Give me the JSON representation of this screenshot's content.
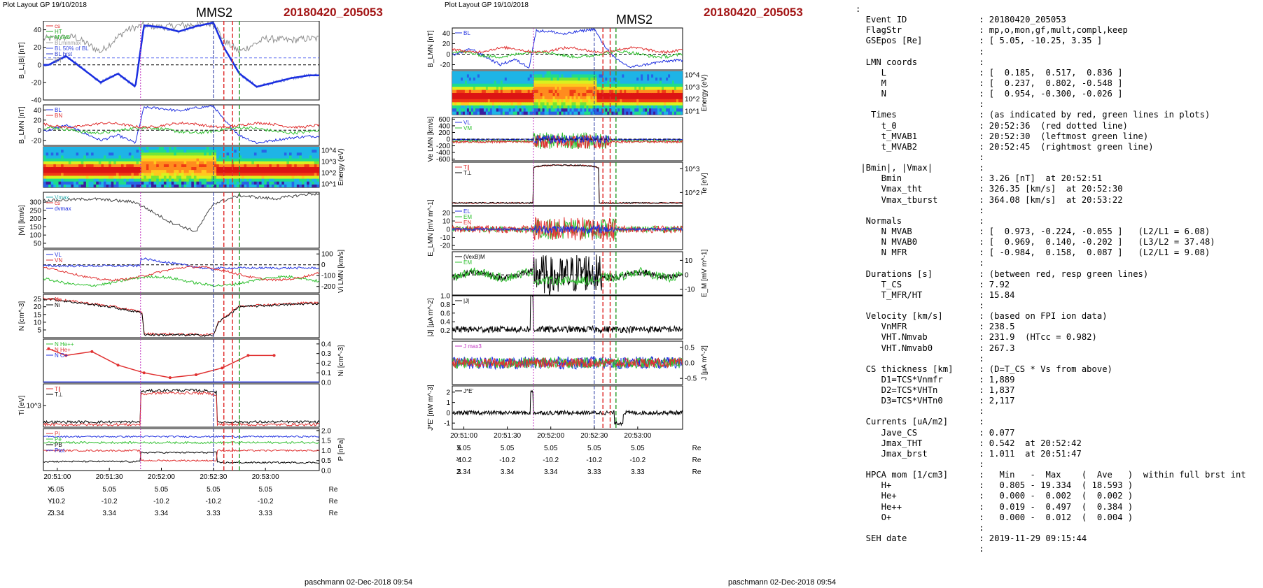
{
  "left": {
    "header_small": "Plot Layout GP 19/10/2018",
    "spacecraft": "MMS2",
    "event": "20180420_205053",
    "footer": "paschmann 02-Dec-2018 09:54",
    "time_ticks": [
      "20:51:00",
      "20:51:30",
      "20:52:00",
      "20:52:30",
      "20:53:00"
    ],
    "pos_rows": [
      {
        "label": "X",
        "values": [
          "5.05",
          "5.05",
          "5.05",
          "5.05",
          "5.05"
        ],
        "unit": "Re"
      },
      {
        "label": "Y",
        "values": [
          "-10.2",
          "-10.2",
          "-10.2",
          "-10.2",
          "-10.2"
        ],
        "unit": "Re"
      },
      {
        "label": "Z",
        "values": [
          "3.34",
          "3.34",
          "3.34",
          "3.33",
          "3.33"
        ],
        "unit": "Re"
      }
    ],
    "panels": [
      {
        "id": "b",
        "ylabel": "B_L,|B| [nT]",
        "rlabel": "",
        "ticks": [
          "40",
          "20",
          "0",
          "-20",
          "-40"
        ],
        "rticks": [],
        "legend": [
          {
            "t": "cs",
            "c": "#e03030"
          },
          {
            "t": "HT",
            "c": "#20a020"
          },
          {
            "t": "MVAB",
            "c": "#30c030"
          },
          {
            "t": "BLminmax",
            "c": "#a0a0a0"
          },
          {
            "t": "BL 50% of BL",
            "c": "#4050e0"
          },
          {
            "t": "BL brst",
            "c": "#3040d0"
          },
          {
            "t": "|B|",
            "c": "#808080"
          }
        ]
      },
      {
        "id": "blmn",
        "ylabel": "B_LMN [nT]",
        "rlabel": "",
        "ticks": [
          "40",
          "20",
          "0",
          "-20"
        ],
        "rticks": [],
        "legend": [
          {
            "t": "BL",
            "c": "#2030e0"
          },
          {
            "t": "BN",
            "c": "#e03030"
          }
        ]
      },
      {
        "id": "spec",
        "ylabel": "",
        "rlabel": "Energy (eV)",
        "ticks": [],
        "rticks": [
          "10^4",
          "10^3",
          "10^2",
          "10^1"
        ],
        "legend": []
      },
      {
        "id": "vi",
        "ylabel": "|Vi| [km/s]",
        "rlabel": "",
        "ticks": [
          "300",
          "250",
          "200",
          "150",
          "100",
          "50"
        ],
        "rticks": [],
        "legend": [
          {
            "t": "Vmax",
            "c": "#30b0b0"
          },
          {
            "t": "cs",
            "c": "#e03030"
          },
          {
            "t": "dvmax",
            "c": "#2030e0"
          }
        ]
      },
      {
        "id": "vlmn",
        "ylabel": "",
        "rlabel": "Vi LMN [km/s]",
        "ticks": [],
        "rticks": [
          "100",
          "0",
          "-100",
          "-200"
        ],
        "legend": [
          {
            "t": "VL",
            "c": "#2030e0"
          },
          {
            "t": "VN",
            "c": "#e03030"
          }
        ]
      },
      {
        "id": "n",
        "ylabel": "N [cm^-3]",
        "rlabel": "",
        "ticks": [
          "25",
          "20",
          "15",
          "10",
          "5"
        ],
        "rticks": [],
        "legend": [
          {
            "t": "Ne",
            "c": "#e03030"
          },
          {
            "t": "Ni",
            "c": "#000000"
          }
        ]
      },
      {
        "id": "ni",
        "ylabel": "",
        "rlabel": "Ni [cm^-3]",
        "ticks": [],
        "rticks": [
          "0.4",
          "0.3",
          "0.2",
          "0.1",
          "0.0"
        ],
        "legend": [
          {
            "t": "N He++",
            "c": "#30c030"
          },
          {
            "t": "N He+",
            "c": "#e03030"
          },
          {
            "t": "N O+",
            "c": "#2030e0"
          }
        ]
      },
      {
        "id": "ti",
        "ylabel": "Ti [eV]",
        "rlabel": "",
        "ticks": [
          "10^3"
        ],
        "rticks": [],
        "legend": [
          {
            "t": "T∥",
            "c": "#e03030"
          },
          {
            "t": "T⊥",
            "c": "#000000"
          }
        ]
      },
      {
        "id": "p",
        "ylabel": "",
        "rlabel": "P [nPa]",
        "ticks": [],
        "rticks": [
          "2.0",
          "1.5",
          "1.0",
          "0.5",
          "0.0"
        ],
        "legend": [
          {
            "t": "Pi",
            "c": "#e03030"
          },
          {
            "t": "Pe",
            "c": "#30c030"
          },
          {
            "t": "PB",
            "c": "#000000"
          },
          {
            "t": "Ptot",
            "c": "#2030e0"
          }
        ]
      }
    ]
  },
  "middle": {
    "header_small": "Plot Layout GP 19/10/2018",
    "spacecraft": "MMS2",
    "event": "20180420_205053",
    "footer": "paschmann 02-Dec-2018 09:54",
    "time_ticks": [
      "20:51:00",
      "20:51:30",
      "20:52:00",
      "20:52:30",
      "20:53:00"
    ],
    "pos_rows": [
      {
        "label": "X",
        "values": [
          "5.05",
          "5.05",
          "5.05",
          "5.05",
          "5.05"
        ],
        "unit": "Re"
      },
      {
        "label": "Y",
        "values": [
          "-10.2",
          "-10.2",
          "-10.2",
          "-10.2",
          "-10.2"
        ],
        "unit": "Re"
      },
      {
        "label": "Z",
        "values": [
          "3.34",
          "3.34",
          "3.34",
          "3.33",
          "3.33"
        ],
        "unit": "Re"
      }
    ],
    "panels": [
      {
        "id": "blmn",
        "ylabel": "B_LMN [nT]",
        "rlabel": "",
        "ticks": [
          "40",
          "20",
          "0",
          "-20"
        ],
        "rticks": [],
        "legend": [
          {
            "t": "BL",
            "c": "#2030e0"
          }
        ]
      },
      {
        "id": "spec",
        "ylabel": "",
        "rlabel": "Energy (eV)",
        "ticks": [],
        "rticks": [
          "10^4",
          "10^3",
          "10^2",
          "10^1"
        ],
        "legend": []
      },
      {
        "id": "ve",
        "ylabel": "Ve LMN [km/s]",
        "rlabel": "",
        "ticks": [
          "600",
          "400",
          "200",
          "0",
          "-200",
          "-400",
          "-600"
        ],
        "rticks": [],
        "legend": [
          {
            "t": "VL",
            "c": "#2030e0"
          },
          {
            "t": "VM",
            "c": "#30c030"
          }
        ]
      },
      {
        "id": "te",
        "ylabel": "",
        "rlabel": "Te [eV]",
        "ticks": [],
        "rticks": [
          "10^3",
          "10^2"
        ],
        "legend": [
          {
            "t": "T∥",
            "c": "#e03030"
          },
          {
            "t": "T⊥",
            "c": "#000000"
          }
        ]
      },
      {
        "id": "e",
        "ylabel": "E_LMN [mV m^-1]",
        "rlabel": "",
        "ticks": [
          "20",
          "10",
          "0",
          "-10",
          "-20"
        ],
        "rticks": [],
        "legend": [
          {
            "t": "EL",
            "c": "#2030e0"
          },
          {
            "t": "EM",
            "c": "#30c030"
          },
          {
            "t": "EN",
            "c": "#e03030"
          }
        ]
      },
      {
        "id": "em",
        "ylabel": "",
        "rlabel": "E_M [mV m^-1]",
        "ticks": [],
        "rticks": [
          "10",
          "0",
          "-10"
        ],
        "legend": [
          {
            "t": "(VexB)M",
            "c": "#000000"
          },
          {
            "t": "EM",
            "c": "#30c030"
          }
        ]
      },
      {
        "id": "j",
        "ylabel": "|J| [µA m^-2]",
        "rlabel": "",
        "ticks": [
          "1.0",
          "0.8",
          "0.6",
          "0.4",
          "0.2"
        ],
        "rticks": [],
        "legend": [
          {
            "t": "|J|",
            "c": "#000000"
          }
        ]
      },
      {
        "id": "jl",
        "ylabel": "",
        "rlabel": "J [µA m^-2]",
        "ticks": [],
        "rticks": [
          "0.5",
          "0.0",
          "-0.5"
        ],
        "legend": [
          {
            "t": "J max3",
            "c": "#c030c0"
          }
        ]
      },
      {
        "id": "je",
        "ylabel": "J*E' [nW m^-3]",
        "rlabel": "",
        "ticks": [
          "2",
          "1",
          "0",
          "-1"
        ],
        "rticks": [],
        "legend": [
          {
            "t": "J*E'",
            "c": "#000000"
          }
        ]
      }
    ]
  },
  "info_lines": [
    ":",
    "  Event ID              : 20180420_205053",
    "  FlagStr               : mp,o,mon,gf,mult,compl,keep",
    "  GSEpos [Re]           : [ 5.05, -10.25, 3.35 ]",
    "                        :",
    "  LMN coords            :",
    "     L                  : [  0.185,  0.517,  0.836 ]",
    "     M                  : [  0.237,  0.802, -0.548 ]",
    "     N                  : [  0.954, -0.300, -0.026 ]",
    "                        :",
    "   Times                : (as indicated by red, green lines in plots)",
    "     t_0                : 20:52:36  (red dotted line)",
    "     t_MVAB1            : 20:52:30  (leftmost green line)",
    "     t_MVAB2            : 20:52:45  (rightmost green line)",
    "                        :",
    " |Bmin|, |Vmax|         :",
    "     Bmin               : 3.26 [nT]  at 20:52:51",
    "     Vmax_tht           : 326.35 [km/s]  at 20:52:30",
    "     Vmax_tburst        : 364.08 [km/s]  at 20:53:22",
    "                        :",
    "  Normals               :",
    "     N MVAB             : [  0.973, -0.224, -0.055 ]   (L2/L1 = 6.08)",
    "     N MVAB0            : [  0.969,  0.140, -0.202 ]   (L3/L2 = 37.48)",
    "     N MFR              : [ -0.984,  0.158,  0.087 ]   (L2/L1 = 9.08)",
    "                        :",
    "  Durations [s]         : (between red, resp green lines)",
    "     T_CS               : 7.92",
    "     T_MFR/HT           : 15.84",
    "                        :",
    "  Velocity [km/s]       : (based on FPI ion data)",
    "     VnMFR              : 238.5",
    "     VHT.Nmvab          : 231.9  (HTcc = 0.982)",
    "     VHT.Nmvab0         : 267.3",
    "                        :",
    "  CS thickness [km]     : (D=T_CS * Vs from above)",
    "     D1=TCS*Vnmfr       : 1,889",
    "     D2=TCS*VHTn        : 1,837",
    "     D3=TCS*VHTn0       : 2,117",
    "                        :",
    "  Currents [uA/m2]      :",
    "     Jave_CS            : 0.077",
    "     Jmax_THT           : 0.542  at 20:52:42",
    "     Jmax_brst          : 1.011  at 20:51:47",
    "                        :",
    "  HPCA mom [1/cm3]      :   Min   -  Max    (  Ave   )  within full brst int",
    "     H+                 :   0.805 - 19.334  ( 18.593 )",
    "     He+                :   0.000 -  0.002  (  0.002 )",
    "     He++               :   0.019 -  0.497  (  0.384 )",
    "     O+                 :   0.000 -  0.012  (  0.004 )",
    "                        :",
    "  SEH date              : 2019-11-29 09:15:44",
    "                        :"
  ],
  "chart_data": [
    {
      "type": "line",
      "title": "MMS2 20180420_205053",
      "xlabel": "",
      "x_ticks": [
        "20:51:00",
        "20:51:30",
        "20:52:00",
        "20:52:30",
        "20:53:00"
      ],
      "ylabel": "B_L,|B| [nT]",
      "ylim": [
        -40,
        50
      ],
      "series": [
        {
          "name": "BL",
          "x": [
            "20:50:55",
            "20:51:05",
            "20:51:15",
            "20:51:25",
            "20:51:35",
            "20:51:45",
            "20:51:50",
            "20:52:00",
            "20:52:10",
            "20:52:20",
            "20:52:30",
            "20:52:36",
            "20:52:45",
            "20:52:55",
            "20:53:05",
            "20:53:15",
            "20:53:25"
          ],
          "values": [
            0,
            10,
            -5,
            -20,
            -10,
            -25,
            45,
            43,
            38,
            44,
            48,
            20,
            -10,
            -25,
            -20,
            -15,
            -12
          ]
        },
        {
          "name": "|B|",
          "x": [
            "20:50:55",
            "20:51:10",
            "20:51:25",
            "20:51:40",
            "20:51:50",
            "20:52:00",
            "20:52:30",
            "20:52:36",
            "20:52:45",
            "20:53:00",
            "20:53:15",
            "20:53:25"
          ],
          "values": [
            30,
            32,
            15,
            40,
            45,
            43,
            48,
            28,
            15,
            30,
            28,
            30
          ]
        }
      ]
    },
    {
      "type": "line",
      "ylabel": "|Vi| [km/s]",
      "ylim": [
        0,
        350
      ],
      "series": [
        {
          "name": "|Vi|",
          "x": [
            "20:50:55",
            "20:51:20",
            "20:51:45",
            "20:52:00",
            "20:52:05",
            "20:52:20",
            "20:52:30",
            "20:52:45",
            "20:53:05",
            "20:53:25"
          ],
          "values": [
            310,
            320,
            300,
            210,
            180,
            120,
            290,
            340,
            320,
            350
          ]
        }
      ]
    },
    {
      "type": "line",
      "ylabel": "N [cm^-3]",
      "ylim": [
        0,
        28
      ],
      "series": [
        {
          "name": "Ni",
          "x": [
            "20:50:55",
            "20:51:30",
            "20:51:49",
            "20:51:50",
            "20:52:30",
            "20:52:33",
            "20:52:45",
            "20:53:25"
          ],
          "values": [
            25,
            20,
            16,
            2,
            1.5,
            10,
            20,
            22
          ]
        }
      ]
    },
    {
      "type": "line",
      "ylabel": "Ni [cm^-3]",
      "ylim": [
        0,
        0.45
      ],
      "series": [
        {
          "name": "N He+",
          "x": [
            "20:50:55",
            "20:51:05",
            "20:51:20",
            "20:51:35",
            "20:51:50",
            "20:52:05",
            "20:52:20",
            "20:52:35",
            "20:52:50",
            "20:53:05"
          ],
          "values": [
            0.35,
            0.28,
            0.32,
            0.18,
            0.1,
            0.05,
            0.08,
            0.15,
            0.28,
            0.28
          ]
        }
      ]
    }
  ]
}
